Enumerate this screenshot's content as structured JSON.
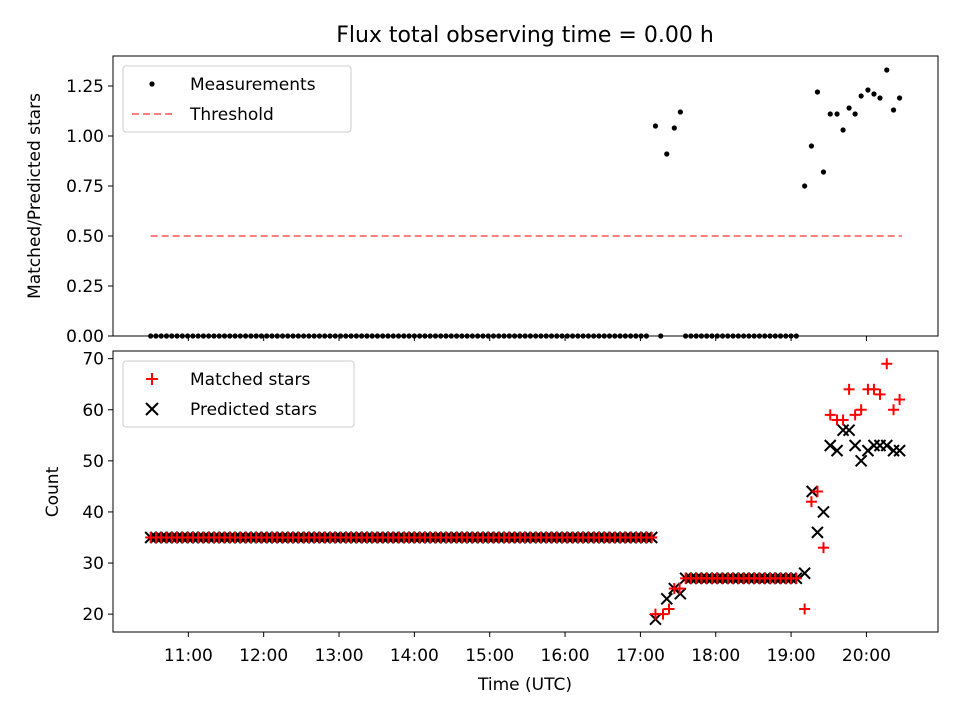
{
  "chart_data": [
    {
      "type": "scatter",
      "title": "Flux total observing time = 0.00 h",
      "xlabel": "",
      "ylabel": "Matched/Predicted stars",
      "ylim": [
        0,
        1.4
      ],
      "yticks": [
        "0.00",
        "0.25",
        "0.50",
        "0.75",
        "1.00",
        "1.25"
      ],
      "xlim_hours": [
        10.0,
        20.95
      ],
      "legend": {
        "position": "top-left",
        "entries": [
          "Measurements",
          "Threshold"
        ]
      },
      "series": [
        {
          "name": "Measurements",
          "color": "#000000",
          "marker": "dot",
          "zero_run": {
            "start": 10.5,
            "end": 17.08,
            "step": 0.07
          },
          "zero_run_2": {
            "start": 17.6,
            "end": 19.12,
            "step": 0.07
          },
          "points": [
            [
              17.2,
              1.05
            ],
            [
              17.27,
              0.0
            ],
            [
              17.35,
              0.91
            ],
            [
              17.45,
              1.04
            ],
            [
              17.53,
              1.12
            ],
            [
              19.18,
              0.75
            ],
            [
              19.27,
              0.95
            ],
            [
              19.35,
              1.22
            ],
            [
              19.43,
              0.82
            ],
            [
              19.52,
              1.11
            ],
            [
              19.61,
              1.11
            ],
            [
              19.69,
              1.03
            ],
            [
              19.77,
              1.14
            ],
            [
              19.85,
              1.11
            ],
            [
              19.93,
              1.2
            ],
            [
              20.02,
              1.23
            ],
            [
              20.1,
              1.21
            ],
            [
              20.18,
              1.19
            ],
            [
              20.27,
              1.33
            ],
            [
              20.36,
              1.13
            ],
            [
              20.44,
              1.19
            ]
          ]
        },
        {
          "name": "Threshold",
          "color": "#ff7f7f",
          "style": "dashed",
          "points": [
            [
              10.5,
              0.5
            ],
            [
              20.47,
              0.5
            ]
          ]
        }
      ]
    },
    {
      "type": "scatter",
      "title": "",
      "xlabel": "Time (UTC)",
      "ylabel": "Count",
      "ylim": [
        16.5,
        71.5
      ],
      "yticks": [
        "20",
        "30",
        "40",
        "50",
        "60",
        "70"
      ],
      "xticks": [
        "11:00",
        "12:00",
        "13:00",
        "14:00",
        "15:00",
        "16:00",
        "17:00",
        "18:00",
        "19:00",
        "20:00"
      ],
      "xlim_hours": [
        10.0,
        20.95
      ],
      "legend": {
        "position": "top-left",
        "entries": [
          "Matched stars",
          "Predicted stars"
        ]
      },
      "series": [
        {
          "name": "Matched stars",
          "color": "#ff0000",
          "marker": "plus",
          "runs": [
            {
              "start": 10.5,
              "end": 17.15,
              "step": 0.07,
              "value": 35
            },
            {
              "start": 17.6,
              "end": 19.12,
              "step": 0.07,
              "value": 27
            }
          ],
          "points": [
            [
              17.2,
              20
            ],
            [
              17.3,
              20
            ],
            [
              17.38,
              21
            ],
            [
              17.45,
              25
            ],
            [
              17.52,
              25
            ],
            [
              19.18,
              21
            ],
            [
              19.27,
              42
            ],
            [
              19.35,
              44
            ],
            [
              19.43,
              33
            ],
            [
              19.52,
              59
            ],
            [
              19.61,
              58
            ],
            [
              19.69,
              58
            ],
            [
              19.77,
              64
            ],
            [
              19.85,
              59
            ],
            [
              19.93,
              60
            ],
            [
              20.02,
              64
            ],
            [
              20.1,
              64
            ],
            [
              20.18,
              63
            ],
            [
              20.27,
              69
            ],
            [
              20.36,
              60
            ],
            [
              20.44,
              62
            ]
          ]
        },
        {
          "name": "Predicted stars",
          "color": "#000000",
          "marker": "x",
          "points": [
            [
              17.2,
              19
            ],
            [
              17.35,
              23
            ],
            [
              17.45,
              25
            ],
            [
              17.53,
              24
            ],
            [
              19.18,
              28
            ],
            [
              19.28,
              44
            ],
            [
              19.35,
              36
            ],
            [
              19.43,
              40
            ],
            [
              19.52,
              53
            ],
            [
              19.61,
              52
            ],
            [
              19.69,
              56
            ],
            [
              19.77,
              56
            ],
            [
              19.85,
              53
            ],
            [
              19.93,
              50
            ],
            [
              20.02,
              52
            ],
            [
              20.1,
              53
            ],
            [
              20.18,
              53
            ],
            [
              20.27,
              53
            ],
            [
              20.36,
              52
            ],
            [
              20.44,
              52
            ]
          ]
        }
      ]
    }
  ]
}
